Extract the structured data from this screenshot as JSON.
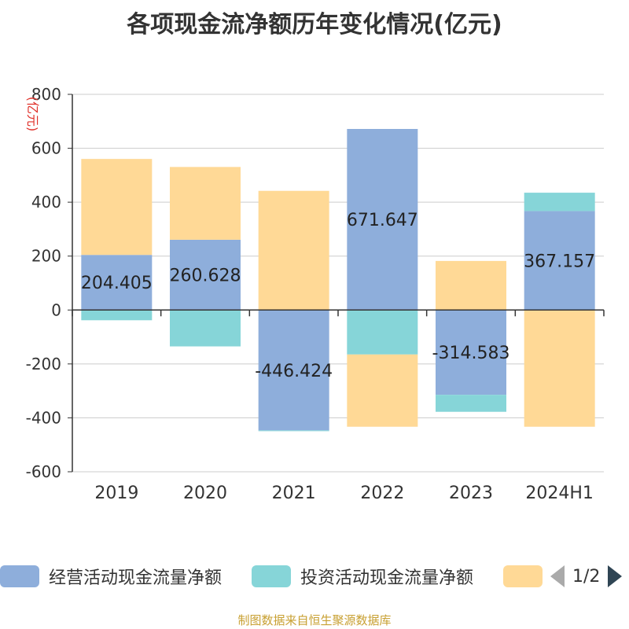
{
  "title": "各项现金流净额历年变化情况(亿元)",
  "source": "制图数据来自恒生聚源数据库",
  "chart_data": {
    "type": "bar",
    "stacked": true,
    "title": "各项现金流净额历年变化情况(亿元)",
    "ylabel": "(亿元)",
    "ylim": [
      -600,
      800
    ],
    "yticks": [
      800,
      600,
      400,
      200,
      0,
      -200,
      -400,
      -600
    ],
    "grid": true,
    "legend_position": "bottom",
    "categories": [
      "2019",
      "2020",
      "2021",
      "2022",
      "2023",
      "2024H1"
    ],
    "series": [
      {
        "name": "经营活动现金流量净额",
        "color": "#8eaedb",
        "values": [
          204.405,
          260.628,
          -446.424,
          671.647,
          -314.583,
          367.157
        ],
        "labels": [
          "204.405",
          "260.628",
          "-446.424",
          "671.647",
          "-314.583",
          "367.157"
        ]
      },
      {
        "name": "投资活动现金流量净额",
        "color": "#86d5d8",
        "values": [
          -38,
          -135,
          -3,
          -165,
          -63,
          68
        ]
      },
      {
        "name": "",
        "color": "#ffd996",
        "values": [
          356,
          270,
          442,
          -268,
          182,
          -433
        ]
      }
    ]
  },
  "legend": {
    "pager_text": "1/2"
  }
}
